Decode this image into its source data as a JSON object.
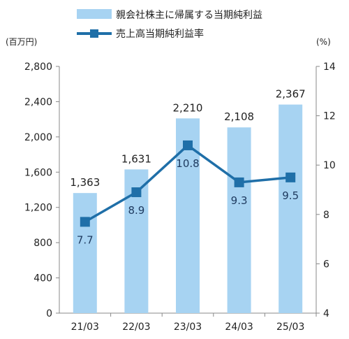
{
  "chart_data": {
    "type": "bar",
    "categories": [
      "21/03",
      "22/03",
      "23/03",
      "24/03",
      "25/03"
    ],
    "series": [
      {
        "name": "親会社株主に帰属する当期純利益",
        "kind": "bar",
        "axis": "left",
        "color": "#a7d3f2",
        "values": [
          1363,
          1631,
          2210,
          2108,
          2367
        ],
        "labels": [
          "1,363",
          "1,631",
          "2,210",
          "2,108",
          "2,367"
        ]
      },
      {
        "name": "売上高当期純利益率",
        "kind": "line",
        "axis": "right",
        "color": "#1f6fa8",
        "values": [
          7.7,
          8.9,
          10.8,
          9.3,
          9.5
        ],
        "labels": [
          "7.7",
          "8.9",
          "10.8",
          "9.3",
          "9.5"
        ]
      }
    ],
    "left_axis": {
      "unit": "(百万円)",
      "ylim": [
        0,
        2800
      ],
      "ticks": [
        0,
        400,
        800,
        1200,
        1600,
        2000,
        2400,
        2800
      ],
      "tick_labels": [
        "0",
        "400",
        "800",
        "1,200",
        "1,600",
        "2,000",
        "2,400",
        "2,800"
      ]
    },
    "right_axis": {
      "unit": "(%)",
      "ylim": [
        4,
        14
      ],
      "ticks": [
        4,
        6,
        8,
        10,
        12,
        14
      ],
      "tick_labels": [
        "4",
        "6",
        "8",
        "10",
        "12",
        "14"
      ]
    },
    "legend_position": "top",
    "grid": false
  }
}
